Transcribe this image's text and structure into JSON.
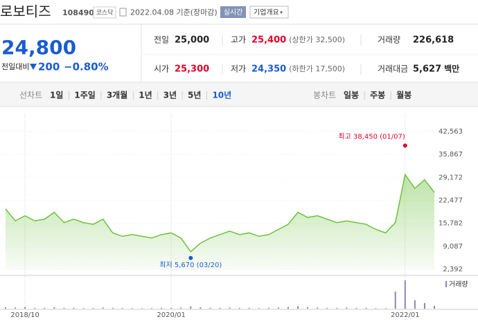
{
  "header": {
    "name": "로보티즈",
    "code": "108490",
    "market": "코스닥",
    "date": "2022.04.08 기준(장마감)",
    "realtime": "실시간",
    "menu": "기업개요"
  },
  "quote": {
    "price": "24,800",
    "change_label": "전일대비",
    "change": "200",
    "change_pct": "−0.80%",
    "stats": [
      {
        "label": "전일",
        "value": "25,000"
      },
      {
        "label": "고가",
        "value": "25,400",
        "note": "(상한가 32,500)",
        "color": "#e4002b"
      },
      {
        "label": "거래량",
        "value": "226,618"
      },
      {
        "label": "시가",
        "value": "25,300",
        "color": "#e4002b"
      },
      {
        "label": "저가",
        "value": "24,350",
        "note": "(하한가 17,500)",
        "color": "#1a5cd1"
      },
      {
        "label": "거래대금",
        "value": "5,627",
        "unit": "백만"
      }
    ]
  },
  "tabs": {
    "line_label": "선차트",
    "line_periods": [
      "1일",
      "1주일",
      "3개월",
      "1년",
      "3년",
      "5년",
      "10년"
    ],
    "selected": 6,
    "candle_label": "봉차트",
    "candle_periods": [
      "일봉",
      "주봉",
      "월봉"
    ]
  },
  "chart_data": {
    "type": "area",
    "color": "#6cc13d",
    "categories": [
      null,
      null,
      "2018/10",
      null,
      null,
      null,
      null,
      null,
      null,
      null,
      null,
      null,
      null,
      null,
      null,
      null,
      null,
      "2020/01",
      null,
      null,
      null,
      null,
      null,
      null,
      null,
      null,
      null,
      null,
      null,
      null,
      null,
      null,
      null,
      null,
      null,
      null,
      null,
      null,
      null,
      null,
      null,
      "2022/01",
      null,
      null,
      null
    ],
    "values": [
      20000,
      16500,
      18000,
      16500,
      17000,
      19000,
      16000,
      17000,
      16000,
      15500,
      17000,
      13000,
      12000,
      12500,
      12000,
      11500,
      12500,
      13000,
      11500,
      7500,
      10000,
      11500,
      12500,
      13500,
      12500,
      13000,
      12000,
      12500,
      14000,
      15500,
      19000,
      17500,
      18000,
      17000,
      16000,
      16500,
      16000,
      15500,
      14000,
      13000,
      16000,
      30000,
      26000,
      28500,
      24800
    ],
    "ylim": [
      2392,
      42563
    ],
    "yticks": [
      {
        "value": 42563,
        "label": "42,563"
      },
      {
        "value": 35867,
        "label": "35,867"
      },
      {
        "value": 29172,
        "label": "29,172"
      },
      {
        "value": 22477,
        "label": "22,477"
      },
      {
        "value": 15782,
        "label": "15,782"
      },
      {
        "value": 9087,
        "label": "9,087"
      },
      {
        "value": 2392,
        "label": "2,392"
      }
    ],
    "annotations": [
      {
        "text": "최고 38,450 (01/07)",
        "value": 38450,
        "color": "#e4002b",
        "kind": "max"
      },
      {
        "text": "최저 5,670 (03/20)",
        "value": 5670,
        "color": "#1a5cd1",
        "kind": "min"
      }
    ],
    "volume": {
      "name": "거래량",
      "color": "#8d82b8",
      "ylim": [
        0,
        100
      ],
      "values": [
        5,
        4,
        6,
        3,
        3,
        5,
        3,
        3,
        2,
        2,
        4,
        3,
        2,
        2,
        2,
        2,
        3,
        3,
        4,
        8,
        5,
        3,
        3,
        4,
        3,
        3,
        2,
        3,
        4,
        6,
        9,
        5,
        4,
        3,
        3,
        4,
        3,
        3,
        2,
        2,
        60,
        100,
        30,
        20,
        10
      ]
    }
  }
}
